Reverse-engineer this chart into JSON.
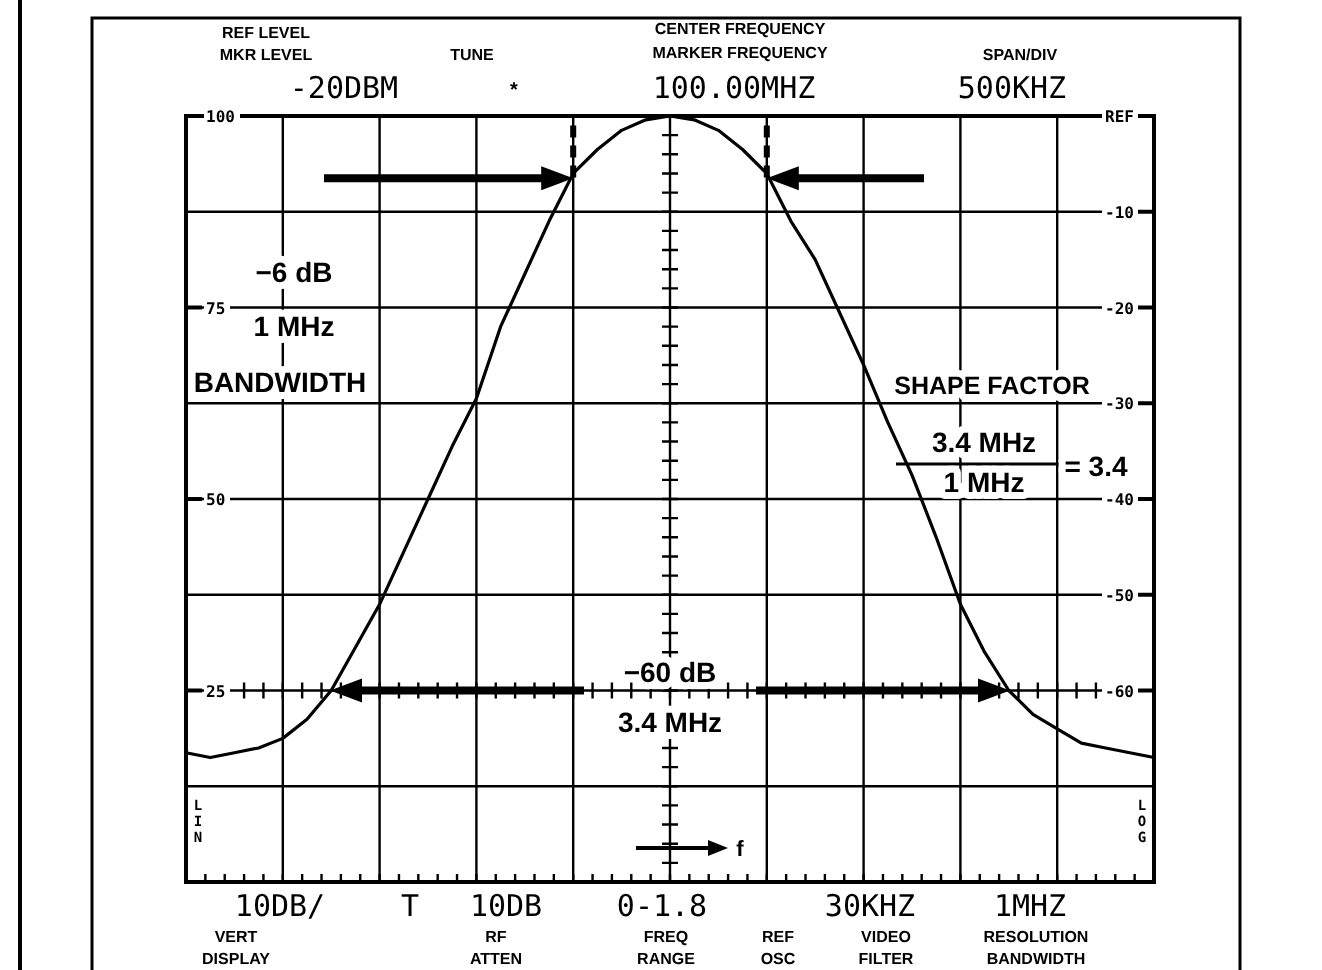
{
  "chart_data": {
    "type": "line",
    "categories": [
      null,
      null,
      null,
      null,
      null,
      null,
      null,
      null,
      null,
      null,
      null,
      null,
      null,
      null,
      null,
      null,
      null,
      null,
      null,
      null,
      null,
      null,
      null,
      null,
      null,
      null,
      null,
      null,
      null,
      null,
      null,
      null,
      null,
      null,
      null,
      null,
      null,
      null,
      null,
      null,
      null
    ],
    "series": [
      {
        "color": "#000000",
        "axis": "y2",
        "values": [
          -66.5,
          -67,
          -66.5,
          -66,
          -65,
          -63,
          -60,
          -55.5,
          -51,
          -45.5,
          -40,
          -34.5,
          -29.5,
          -22,
          -16.5,
          -11,
          -6,
          -3.5,
          -1.5,
          -0.4,
          0,
          -0.4,
          -1.5,
          -3.5,
          -6,
          -11,
          -15,
          -20.5,
          -26,
          -32,
          -37.5,
          -44,
          -51,
          -56,
          -60,
          -62.5,
          -64,
          -65.5,
          -66,
          -66.5,
          -67
        ]
      }
    ],
    "ylim": [
      0,
      100
    ],
    "yticks": [
      25,
      50,
      75,
      100
    ],
    "y2lim": [
      -80,
      0
    ],
    "y2ticks": [
      {
        "value": 0,
        "label": "REF"
      },
      -10,
      -20,
      -30,
      -40,
      -50,
      -60
    ],
    "grid": true,
    "marker": "none",
    "line_style": "solid",
    "annotations": [
      "REF LEVEL",
      "MKR LEVEL",
      "-20DBM",
      "TUNE",
      "*",
      "CENTER FREQUENCY",
      "MARKER FREQUENCY",
      "100.00MHZ",
      "SPAN/DIV",
      "500KHZ",
      "10DB/",
      "T",
      "10DB",
      "0-1.8",
      "30KHZ",
      "1MHZ",
      "VERT",
      "DISPLAY",
      "RF",
      "ATTEN",
      "FREQ",
      "RANGE",
      "REF",
      "OSC",
      "VIDEO",
      "FILTER",
      "RESOLUTION",
      "BANDWIDTH",
      "LIN",
      "LOG",
      "f",
      "−6 dB",
      "1 MHz",
      "BANDWIDTH",
      "SHAPE FACTOR",
      "3.4 MHz",
      "1 MHz",
      "= 3.4",
      "−60 dB",
      "3.4 MHz"
    ]
  }
}
